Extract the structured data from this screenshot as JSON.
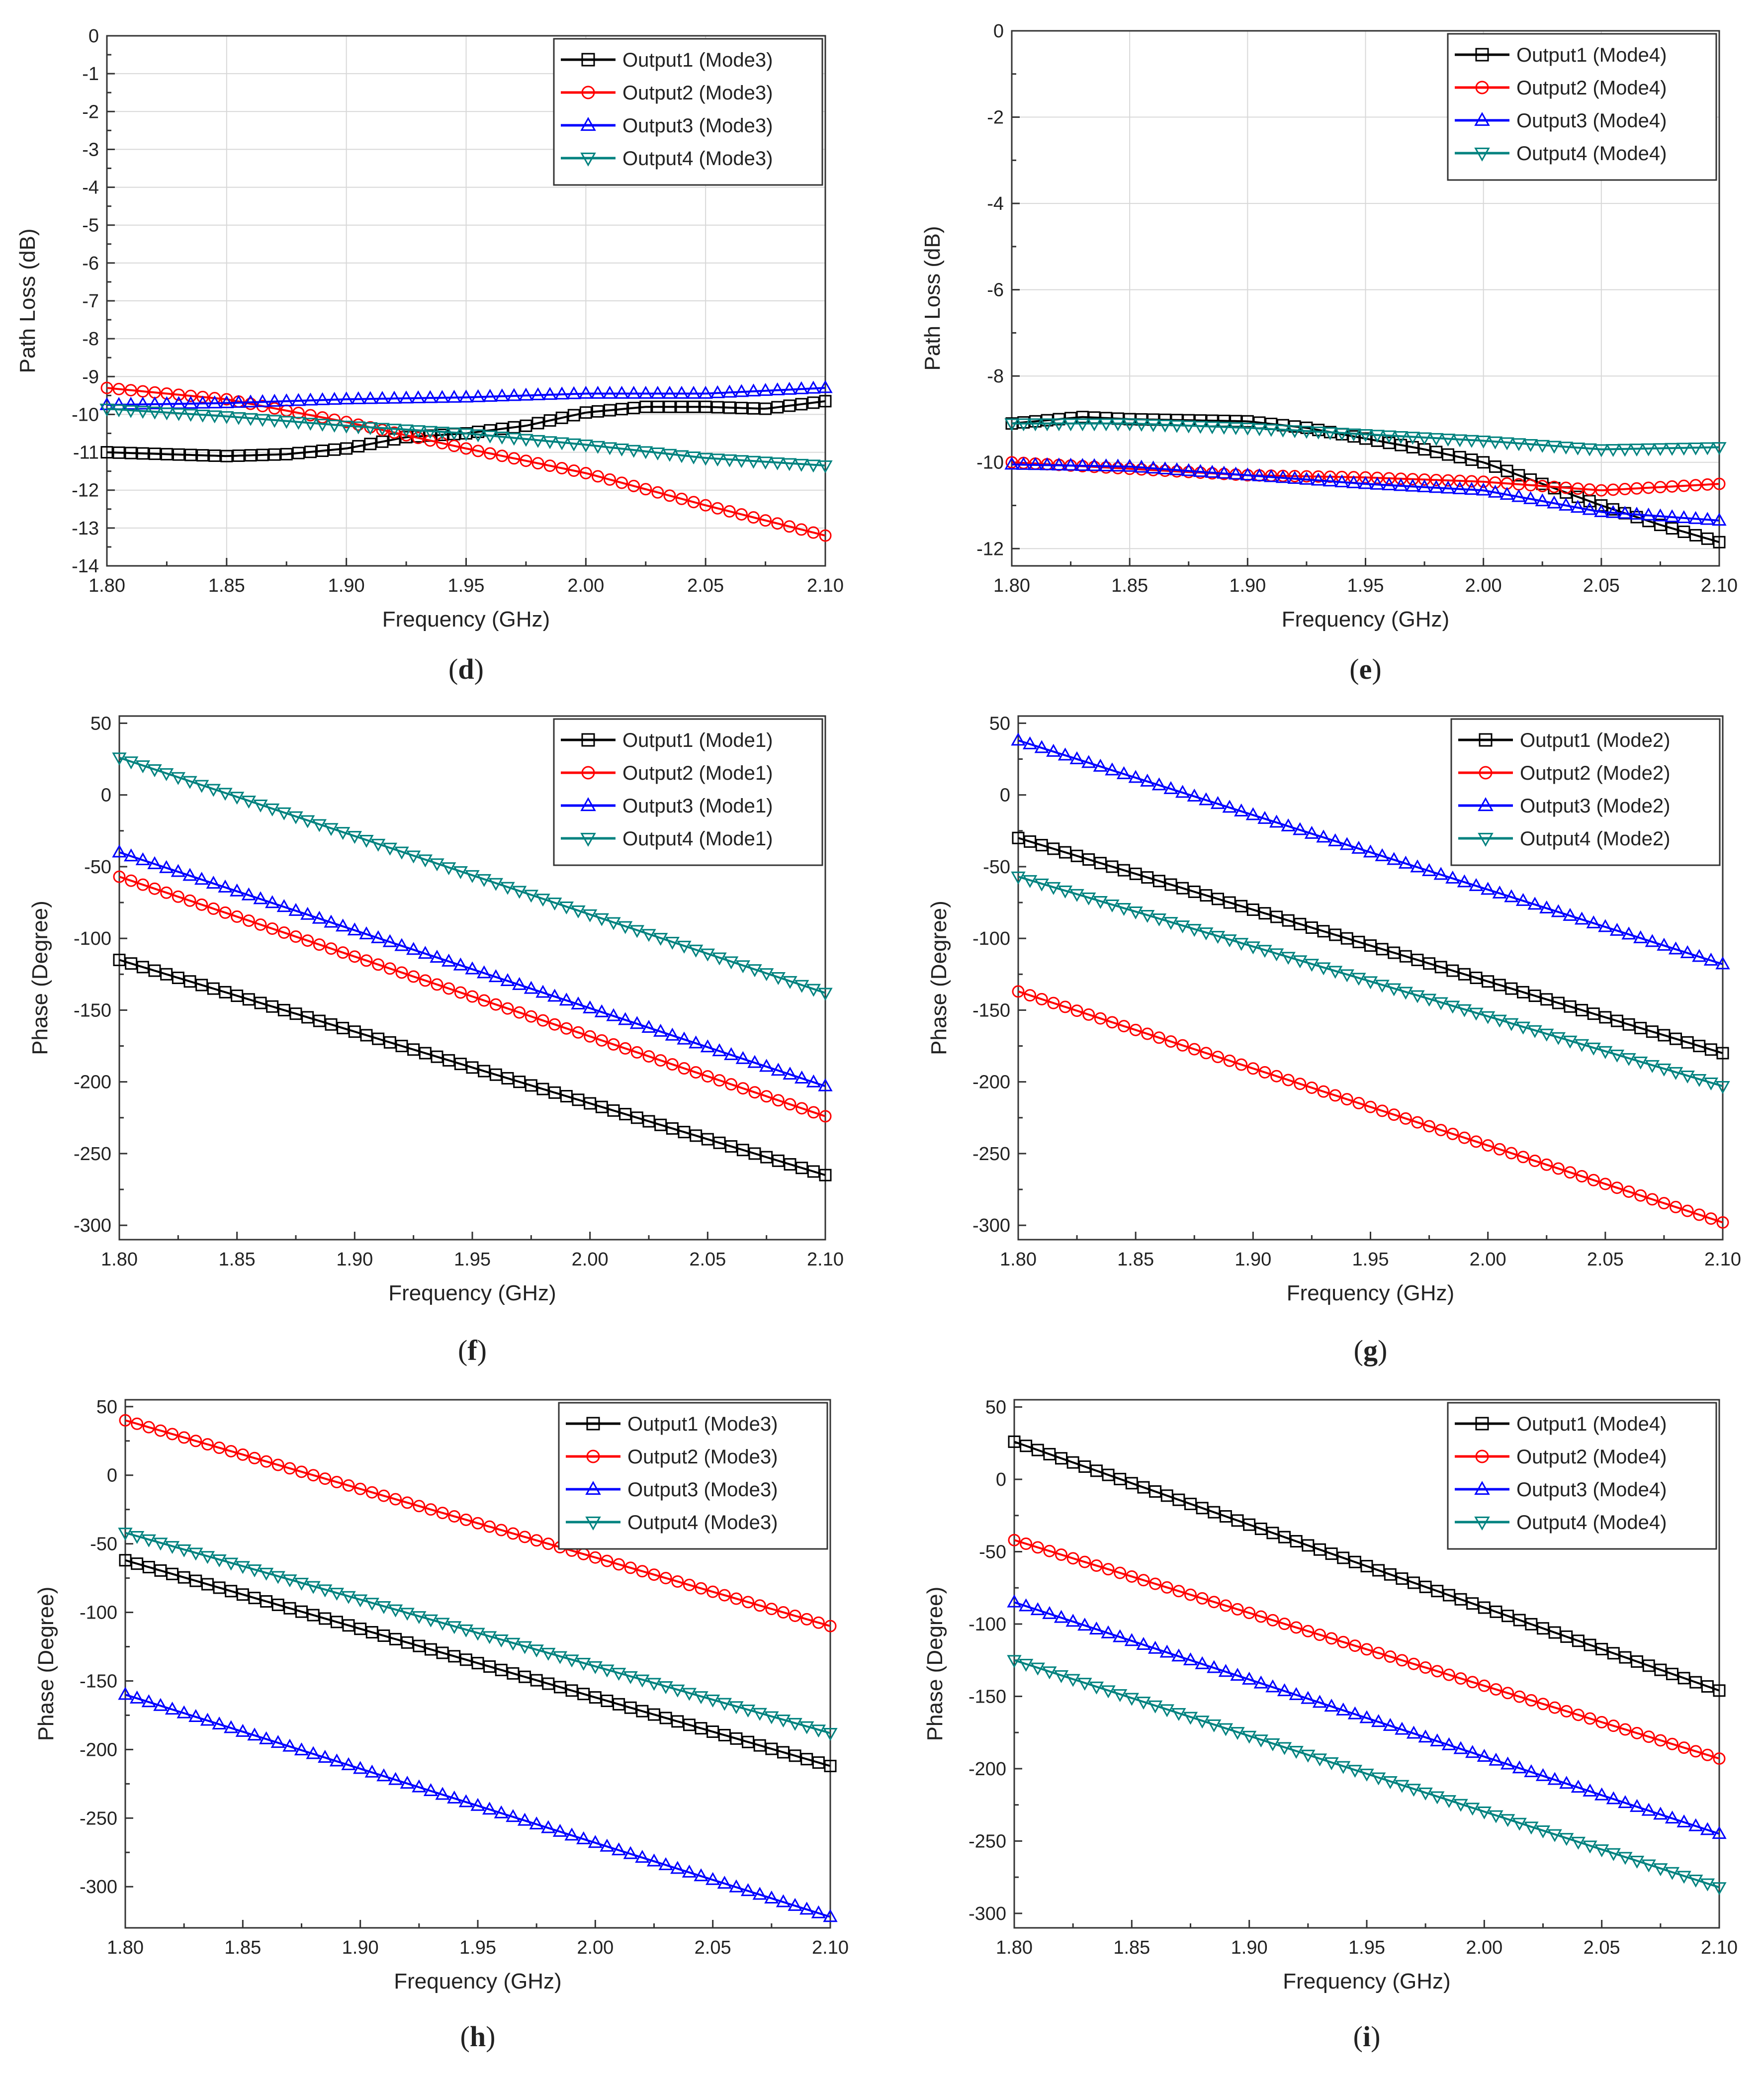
{
  "chart_data": [
    {
      "type": "line",
      "caption_letter": "d",
      "xlabel": "Frequency (GHz)",
      "ylabel": "Path Loss (dB)",
      "xlim": [
        1.8,
        2.1
      ],
      "ylim": [
        -14,
        0
      ],
      "xticks": [
        "1.80",
        "1.85",
        "1.90",
        "1.95",
        "2.00",
        "2.05",
        "2.10"
      ],
      "yticks": [
        "0",
        "-1",
        "-2",
        "-3",
        "-4",
        "-5",
        "-6",
        "-7",
        "-8",
        "-9",
        "-10",
        "-11",
        "-12",
        "-13",
        "-14"
      ],
      "grid": true,
      "legend_position": "top-right",
      "series": [
        {
          "name": "Output1 (Mode3)",
          "color": "#000000",
          "marker": "square",
          "x": [
            1.8,
            1.85,
            1.875,
            1.9,
            1.925,
            1.95,
            1.975,
            2.0,
            2.025,
            2.05,
            2.075,
            2.1
          ],
          "y": [
            -11.0,
            -11.1,
            -11.05,
            -10.9,
            -10.6,
            -10.5,
            -10.3,
            -9.95,
            -9.8,
            -9.8,
            -9.85,
            -9.65
          ]
        },
        {
          "name": "Output2 (Mode3)",
          "color": "#ff0000",
          "marker": "circle",
          "x": [
            1.8,
            1.85,
            1.9,
            1.95,
            2.0,
            2.05,
            2.1
          ],
          "y": [
            -9.3,
            -9.6,
            -10.2,
            -10.9,
            -11.55,
            -12.4,
            -13.2
          ]
        },
        {
          "name": "Output3 (Mode3)",
          "color": "#0000ff",
          "marker": "triangle-up",
          "x": [
            1.8,
            1.85,
            1.9,
            1.95,
            2.0,
            2.05,
            2.1
          ],
          "y": [
            -9.75,
            -9.7,
            -9.6,
            -9.55,
            -9.45,
            -9.45,
            -9.3
          ]
        },
        {
          "name": "Output4 (Mode3)",
          "color": "#00827f",
          "marker": "triangle-down",
          "x": [
            1.8,
            1.85,
            1.9,
            1.95,
            2.0,
            2.05,
            2.1
          ],
          "y": [
            -9.85,
            -10.05,
            -10.3,
            -10.5,
            -10.8,
            -11.15,
            -11.35
          ]
        }
      ]
    },
    {
      "type": "line",
      "caption_letter": "e",
      "xlabel": "Frequency (GHz)",
      "ylabel": "Path Loss (dB)",
      "xlim": [
        1.8,
        2.1
      ],
      "ylim": [
        -12.4,
        0
      ],
      "xticks": [
        "1.80",
        "1.85",
        "1.90",
        "1.95",
        "2.00",
        "2.05",
        "2.10"
      ],
      "yticks": [
        "0",
        "-2",
        "-4",
        "-6",
        "-8",
        "-10",
        "-12"
      ],
      "grid": true,
      "legend_position": "top-right",
      "series": [
        {
          "name": "Output1 (Mode4)",
          "color": "#000000",
          "marker": "square",
          "x": [
            1.8,
            1.83,
            1.85,
            1.9,
            1.925,
            1.95,
            1.975,
            2.0,
            2.025,
            2.05,
            2.075,
            2.1
          ],
          "y": [
            -9.1,
            -8.95,
            -9.0,
            -9.05,
            -9.2,
            -9.45,
            -9.7,
            -10.0,
            -10.5,
            -11.0,
            -11.45,
            -11.85
          ]
        },
        {
          "name": "Output2 (Mode4)",
          "color": "#ff0000",
          "marker": "circle",
          "x": [
            1.8,
            1.85,
            1.9,
            1.95,
            2.0,
            2.05,
            2.1
          ],
          "y": [
            -10.0,
            -10.15,
            -10.3,
            -10.35,
            -10.45,
            -10.65,
            -10.5
          ]
        },
        {
          "name": "Output3 (Mode4)",
          "color": "#0000ff",
          "marker": "triangle-up",
          "x": [
            1.8,
            1.85,
            1.9,
            1.95,
            2.0,
            2.05,
            2.1
          ],
          "y": [
            -10.05,
            -10.1,
            -10.3,
            -10.5,
            -10.65,
            -11.15,
            -11.35
          ]
        },
        {
          "name": "Output4 (Mode4)",
          "color": "#00827f",
          "marker": "triangle-down",
          "x": [
            1.8,
            1.85,
            1.9,
            1.95,
            2.0,
            2.05,
            2.1
          ],
          "y": [
            -9.1,
            -9.1,
            -9.2,
            -9.35,
            -9.5,
            -9.7,
            -9.65
          ]
        }
      ]
    },
    {
      "type": "line",
      "caption_letter": "f",
      "xlabel": "Frequency (GHz)",
      "ylabel": "Phase (Degree)",
      "xlim": [
        1.8,
        2.1
      ],
      "ylim": [
        -310,
        55
      ],
      "xticks": [
        "1.80",
        "1.85",
        "1.90",
        "1.95",
        "2.00",
        "2.05",
        "2.10"
      ],
      "yticks": [
        "50",
        "0",
        "-50",
        "-100",
        "-150",
        "-200",
        "-250",
        "-300"
      ],
      "grid": false,
      "legend_position": "top-right",
      "series": [
        {
          "name": "Output1 (Mode1)",
          "color": "#000000",
          "marker": "square",
          "x": [
            1.8,
            2.1
          ],
          "y": [
            -115,
            -265
          ]
        },
        {
          "name": "Output2 (Mode1)",
          "color": "#ff0000",
          "marker": "circle",
          "x": [
            1.8,
            2.1
          ],
          "y": [
            -57,
            -224
          ]
        },
        {
          "name": "Output3 (Mode1)",
          "color": "#0000ff",
          "marker": "triangle-up",
          "x": [
            1.8,
            2.1
          ],
          "y": [
            -40,
            -203
          ]
        },
        {
          "name": "Output4 (Mode1)",
          "color": "#00827f",
          "marker": "triangle-down",
          "x": [
            1.8,
            2.1
          ],
          "y": [
            26,
            -138
          ]
        }
      ]
    },
    {
      "type": "line",
      "caption_letter": "g",
      "xlabel": "Frequency (GHz)",
      "ylabel": "Phase (Degree)",
      "xlim": [
        1.8,
        2.1
      ],
      "ylim": [
        -310,
        55
      ],
      "xticks": [
        "1.80",
        "1.85",
        "1.90",
        "1.95",
        "2.00",
        "2.05",
        "2.10"
      ],
      "yticks": [
        "50",
        "0",
        "-50",
        "-100",
        "-150",
        "-200",
        "-250",
        "-300"
      ],
      "grid": false,
      "legend_position": "top-right",
      "series": [
        {
          "name": "Output1 (Mode2)",
          "color": "#000000",
          "marker": "square",
          "x": [
            1.8,
            2.1
          ],
          "y": [
            -30,
            -180
          ]
        },
        {
          "name": "Output2 (Mode2)",
          "color": "#ff0000",
          "marker": "circle",
          "x": [
            1.8,
            2.1
          ],
          "y": [
            -137,
            -298
          ]
        },
        {
          "name": "Output3 (Mode2)",
          "color": "#0000ff",
          "marker": "triangle-up",
          "x": [
            1.8,
            2.1
          ],
          "y": [
            38,
            -118
          ]
        },
        {
          "name": "Output4 (Mode2)",
          "color": "#00827f",
          "marker": "triangle-down",
          "x": [
            1.8,
            2.1
          ],
          "y": [
            -57,
            -203
          ]
        }
      ]
    },
    {
      "type": "line",
      "caption_letter": "h",
      "xlabel": "Frequency (GHz)",
      "ylabel": "Phase (Degree)",
      "xlim": [
        1.8,
        2.1
      ],
      "ylim": [
        -330,
        55
      ],
      "xticks": [
        "1.80",
        "1.85",
        "1.90",
        "1.95",
        "2.00",
        "2.05",
        "2.10"
      ],
      "yticks": [
        "50",
        "0",
        "-50",
        "-100",
        "-150",
        "-200",
        "-250",
        "-300"
      ],
      "grid": false,
      "legend_position": "top-right",
      "series": [
        {
          "name": "Output1 (Mode3)",
          "color": "#000000",
          "marker": "square",
          "x": [
            1.8,
            2.1
          ],
          "y": [
            -62,
            -212
          ]
        },
        {
          "name": "Output2 (Mode3)",
          "color": "#ff0000",
          "marker": "circle",
          "x": [
            1.8,
            2.1
          ],
          "y": [
            40,
            -110
          ]
        },
        {
          "name": "Output3 (Mode3)",
          "color": "#0000ff",
          "marker": "triangle-up",
          "x": [
            1.8,
            2.1
          ],
          "y": [
            -160,
            -322
          ]
        },
        {
          "name": "Output4 (Mode3)",
          "color": "#00827f",
          "marker": "triangle-down",
          "x": [
            1.8,
            2.1
          ],
          "y": [
            -42,
            -188
          ]
        }
      ]
    },
    {
      "type": "line",
      "caption_letter": "i",
      "xlabel": "Frequency (GHz)",
      "ylabel": "Phase (Degree)",
      "xlim": [
        1.8,
        2.1
      ],
      "ylim": [
        -310,
        55
      ],
      "xticks": [
        "1.80",
        "1.85",
        "1.90",
        "1.95",
        "2.00",
        "2.05",
        "2.10"
      ],
      "yticks": [
        "50",
        "0",
        "-50",
        "-100",
        "-150",
        "-200",
        "-250",
        "-300"
      ],
      "grid": false,
      "legend_position": "top-right",
      "series": [
        {
          "name": "Output1 (Mode4)",
          "color": "#000000",
          "marker": "square",
          "x": [
            1.8,
            2.1
          ],
          "y": [
            26,
            -146
          ]
        },
        {
          "name": "Output2 (Mode4)",
          "color": "#ff0000",
          "marker": "circle",
          "x": [
            1.8,
            2.1
          ],
          "y": [
            -42,
            -193
          ]
        },
        {
          "name": "Output3 (Mode4)",
          "color": "#0000ff",
          "marker": "triangle-up",
          "x": [
            1.8,
            2.1
          ],
          "y": [
            -85,
            -245
          ]
        },
        {
          "name": "Output4 (Mode4)",
          "color": "#00827f",
          "marker": "triangle-down",
          "x": [
            1.8,
            2.1
          ],
          "y": [
            -125,
            -282
          ]
        }
      ]
    }
  ]
}
